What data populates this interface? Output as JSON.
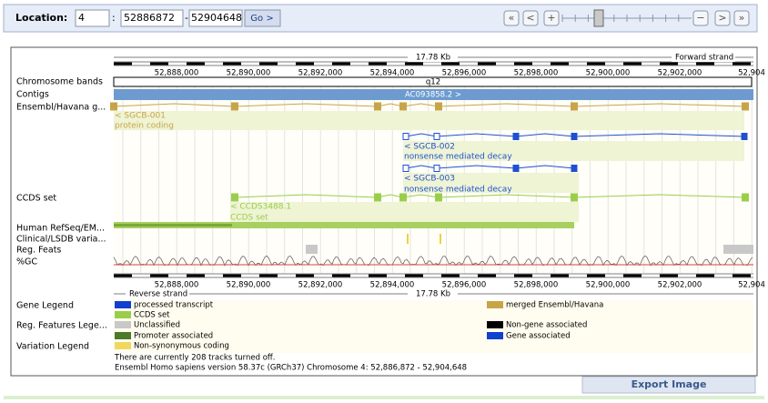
{
  "location": {
    "label": "Location:",
    "chromosome": "4",
    "separator": ":",
    "start": "52886872",
    "dash": "-",
    "end": "52904648",
    "go": "Go >"
  },
  "nav": {
    "first": "«",
    "prev": "<",
    "zoom_in": "+",
    "zoom_out": "−",
    "next": ">",
    "last": "»"
  },
  "scale": {
    "length": "17.78 Kb",
    "forward": "Forward strand",
    "reverse": "Reverse strand",
    "labels": [
      "52,888,000",
      "52,890,000",
      "52,892,000",
      "52,894,000",
      "52,896,000",
      "52,898,000",
      "52,900,000",
      "52,902,000",
      "52,904"
    ]
  },
  "tracks": {
    "chromosome_bands": "Chromosome bands",
    "band": "q12",
    "contigs": "Contigs",
    "contig": "AC093858.2 >",
    "ensembl": "Ensembl/Havana g...",
    "ccds": "CCDS set",
    "refseq": "Human RefSeq/EM...",
    "clinical": "Clinical/LSDB varia...",
    "reg_feats": "Reg. Feats",
    "gc": "%GC"
  },
  "features": {
    "sgcb001": "< SGCB-001",
    "sgcb001_type": "protein coding",
    "sgcb002": "< SGCB-002",
    "sgcb002_type": "nonsense mediated decay",
    "sgcb003": "< SGCB-003",
    "sgcb003_type": "nonsense mediated decay",
    "ccds_id": "< CCDS3488.1",
    "ccds_type": "CCDS set"
  },
  "legends": {
    "gene": "Gene Legend",
    "processed": "processed transcript",
    "merged": "merged Ensembl/Havana",
    "ccds": "CCDS set",
    "reg": "Reg. Features Lege...",
    "unclassified": "Unclassified",
    "non_gene": "Non-gene associated",
    "promoter": "Promoter associated",
    "gene_assoc": "Gene associated",
    "variation": "Variation Legend",
    "nonsyn": "Non-synonymous coding"
  },
  "footer": {
    "tracks_off": "There are currently 208 tracks turned off.",
    "version": "Ensembl Homo sapiens version 58.37c (GRCh37) Chromosome 4: 52,886,872 - 52,904,648",
    "export": "Export Image"
  }
}
